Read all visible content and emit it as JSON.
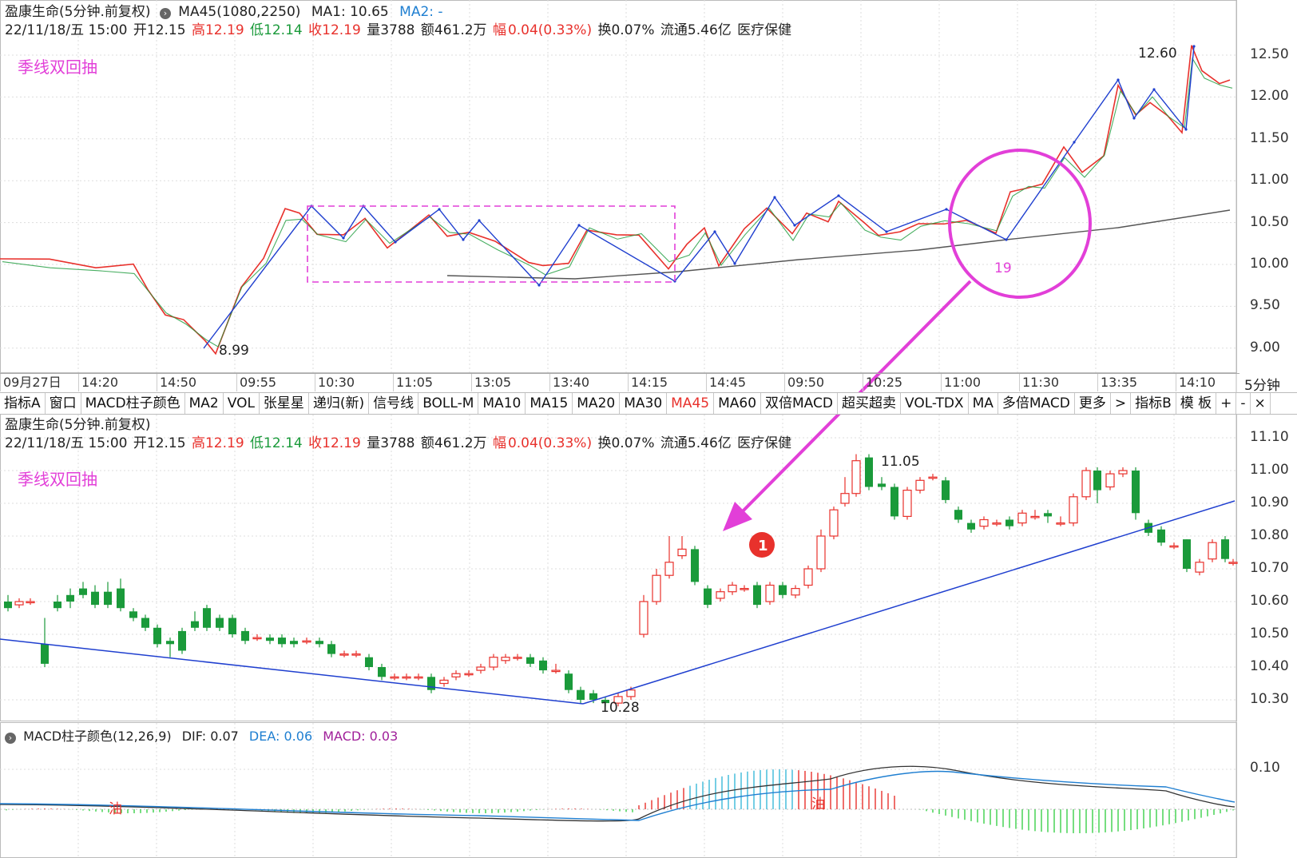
{
  "top": {
    "title": "盈康生命(5分钟.前复权)",
    "indicator": "MA45(1080,2250)",
    "ma1": "MA1: 10.65",
    "ma2": "MA2: -",
    "info": {
      "date": "22/11/18/五 15:00",
      "open": "开12.15",
      "high": "高12.19",
      "low": "低12.14",
      "close": "收12.19",
      "vol": "量3788",
      "amount": "额461.2万",
      "amp_label": "幅",
      "amp": "0.04(0.33%)",
      "turnover": "换0.07%",
      "float": "流通5.46亿",
      "sector": "医疗保健"
    },
    "annotation": "季线双回抽",
    "y_ticks": [
      "12.50",
      "12.00",
      "11.50",
      "11.00",
      "10.50",
      "10.00",
      "9.50",
      "9.00"
    ],
    "high_label": "12.60",
    "low_label": "8.99",
    "circle_label": "19"
  },
  "time_axis": [
    "09月27日",
    "14:20",
    "14:50",
    "09:55",
    "10:30",
    "11:05",
    "13:05",
    "13:40",
    "14:15",
    "14:45",
    "09:50",
    "10:25",
    "11:00",
    "11:30",
    "13:35",
    "14:10"
  ],
  "period": "5分钟",
  "toolbar": [
    "指标A",
    "窗口",
    "MACD柱子颜色",
    "MA2",
    "VOL",
    "张星星",
    "递归(新)",
    "信号线",
    "BOLL-M",
    "MA10",
    "MA15",
    "MA20",
    "MA30",
    "MA45",
    "MA60",
    "双倍MACD",
    "超买超卖",
    "VOL-TDX",
    "MA",
    "多倍MACD",
    "更多",
    ">",
    "指标B",
    "模 板",
    "+",
    "-",
    "×"
  ],
  "toolbar_active": "MA45",
  "bottom": {
    "title": "盈康生命(5分钟.前复权)",
    "info": {
      "date": "22/11/18/五 15:00",
      "open": "开12.15",
      "high": "高12.19",
      "low": "低12.14",
      "close": "收12.19",
      "vol": "量3788",
      "amount": "额461.2万",
      "amp_label": "幅",
      "amp": "0.04(0.33%)",
      "turnover": "换0.07%",
      "float": "流通5.46亿",
      "sector": "医疗保健"
    },
    "annotation": "季线双回抽",
    "y_ticks": [
      "11.10",
      "11.00",
      "10.90",
      "10.80",
      "10.70",
      "10.60",
      "10.50",
      "10.40",
      "10.30"
    ],
    "high_label": "11.05",
    "low_label": "10.28",
    "badge": "1"
  },
  "macd": {
    "title": "MACD柱子颜色(12,26,9)",
    "dif": "DIF: 0.07",
    "dea": "DEA: 0.06",
    "macd": "MACD: 0.03",
    "y_tick": "0.10",
    "oil1": "油",
    "oil2": "油"
  },
  "colors": {
    "up": "#e8312c",
    "down": "#1a9a3a",
    "ma": "#1f3fcf",
    "pink": "#e23fd8"
  }
}
